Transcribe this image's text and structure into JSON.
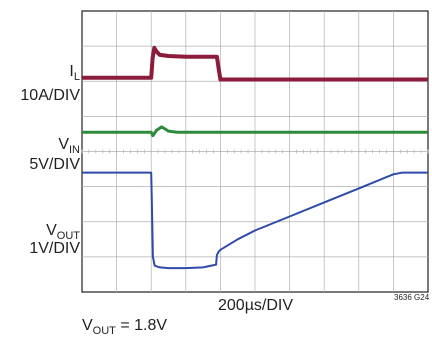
{
  "chart_data": {
    "type": "line",
    "title": "",
    "xlabel": "200µs/DIV",
    "figure_code": "3636 G24",
    "footnote": "V",
    "footnote_sub": "OUT",
    "footnote_value": " = 1.8V",
    "grid": true,
    "x_divisions": 10,
    "y_divisions": 8,
    "trace_units": "divisions from top of graticule, 0–8; time axis in µs, 0–2000",
    "colors": {
      "il": "#8c1c3c",
      "vin": "#2e8b3c",
      "vout": "#2f4aa8",
      "grid": "#b0b0b0",
      "frame": "#231f20"
    },
    "channels": [
      {
        "symbol": "I",
        "subscript": "L",
        "scale": "10A/DIV"
      },
      {
        "symbol": "V",
        "subscript": "IN",
        "scale": "5V/DIV"
      },
      {
        "symbol": "V",
        "subscript": "OUT",
        "scale": "1V/DIV"
      }
    ],
    "series": [
      {
        "key": "il",
        "x": [
          0,
          200,
          400,
          408,
          418,
          430,
          450,
          500,
          600,
          700,
          780,
          790,
          800,
          1000,
          1500,
          2000
        ],
        "y": [
          1.9,
          1.9,
          1.9,
          1.35,
          1.05,
          1.15,
          1.25,
          1.28,
          1.3,
          1.3,
          1.3,
          1.65,
          1.95,
          1.95,
          1.95,
          1.95
        ]
      },
      {
        "key": "vin",
        "x": [
          0,
          200,
          400,
          410,
          430,
          460,
          500,
          550,
          600,
          800,
          1000,
          1500,
          2000
        ],
        "y": [
          3.45,
          3.45,
          3.45,
          3.55,
          3.4,
          3.3,
          3.42,
          3.45,
          3.45,
          3.45,
          3.45,
          3.45,
          3.45
        ]
      },
      {
        "key": "vout",
        "x": [
          0,
          200,
          400,
          405,
          410,
          420,
          450,
          500,
          600,
          700,
          775,
          780,
          790,
          800,
          900,
          1000,
          1200,
          1400,
          1600,
          1800,
          1850,
          2000
        ],
        "y": [
          4.6,
          4.6,
          4.6,
          5.8,
          7.0,
          7.25,
          7.3,
          7.32,
          7.32,
          7.3,
          7.22,
          6.95,
          6.85,
          6.8,
          6.5,
          6.25,
          5.85,
          5.45,
          5.05,
          4.65,
          4.6,
          4.6
        ]
      }
    ]
  }
}
